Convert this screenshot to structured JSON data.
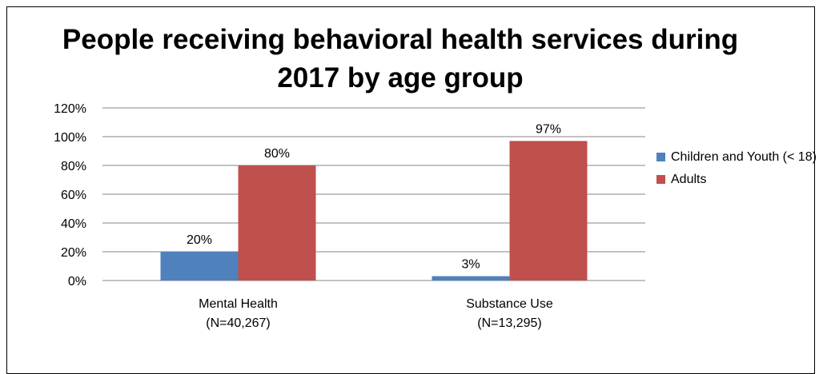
{
  "title": "People receiving behavioral health services during 2017 by age group",
  "chart_data": {
    "type": "bar",
    "title": "People receiving behavioral health services during 2017 by age group",
    "categories": [
      "Mental Health\n(N=40,267)",
      "Substance Use\n(N=13,295)"
    ],
    "category_lines": [
      [
        "Mental Health",
        "(N=40,267)"
      ],
      [
        "Substance Use",
        "(N=13,295)"
      ]
    ],
    "series": [
      {
        "name": "Children and Youth (< 18)",
        "values": [
          20,
          3
        ],
        "labels": [
          "20%",
          "3%"
        ],
        "color": "#4f81bd"
      },
      {
        "name": "Adults",
        "values": [
          80,
          97
        ],
        "labels": [
          "80%",
          "97%"
        ],
        "color": "#c0504d"
      }
    ],
    "ylim": [
      0,
      120
    ],
    "yticks": [
      "0%",
      "20%",
      "40%",
      "60%",
      "80%",
      "100%",
      "120%"
    ],
    "ytick_values": [
      0,
      20,
      40,
      60,
      80,
      100,
      120
    ],
    "grid": true,
    "legend_position": "right",
    "xlabel": "",
    "ylabel": ""
  }
}
